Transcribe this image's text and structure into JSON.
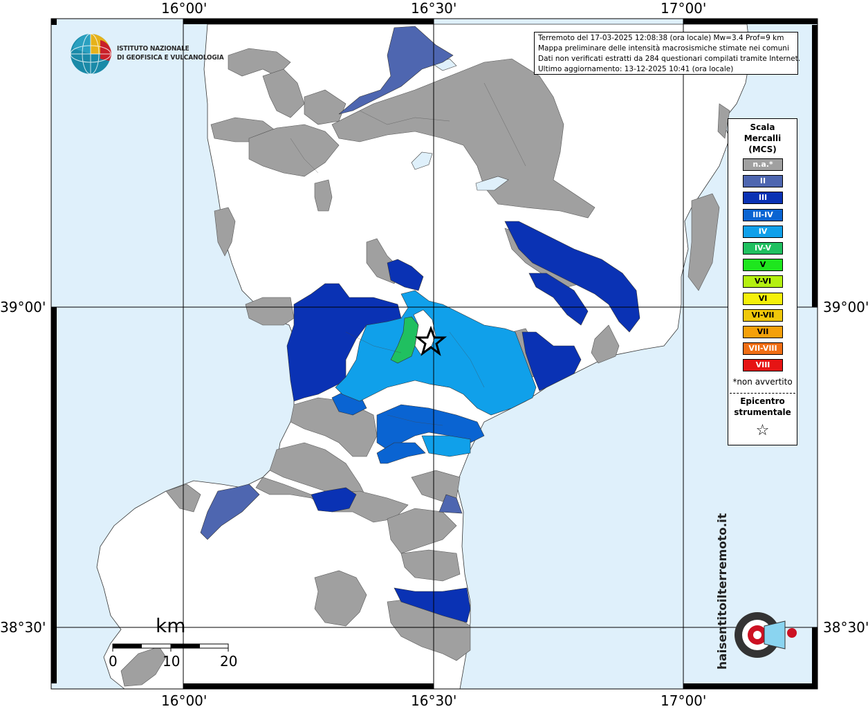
{
  "coordinates": {
    "top": [
      "16°00'",
      "16°30'",
      "17°00'"
    ],
    "bottom": [
      "16°00'",
      "16°30'",
      "17°00'"
    ],
    "left": [
      "39°00'",
      "38°30'"
    ],
    "right": [
      "39°00'",
      "38°30'"
    ]
  },
  "info": {
    "line1": "Terremoto del 17-03-2025 12:08:38 (ora locale) Mw=3.4 Prof=9 km",
    "line2": "Mappa preliminare delle intensità macrosismiche stimate nei comuni",
    "line3": "Dati non verificati estratti da 284 questionari compilati tramite Internet.",
    "line4": "Ultimo aggiornamento: 13-12-2025 10:41 (ora locale)"
  },
  "logo": {
    "line1": "ISTITUTO NAZIONALE",
    "line2": "DI GEOFISICA E VULCANOLOGIA"
  },
  "legend": {
    "title1": "Scala",
    "title2": "Mercalli",
    "title3": "(MCS)",
    "items": [
      {
        "label": "n.a.*",
        "color": "#a0a0a0"
      },
      {
        "label": "II",
        "color": "#4e66b0"
      },
      {
        "label": "III",
        "color": "#0a32b4"
      },
      {
        "label": "III-IV",
        "color": "#0a64d2"
      },
      {
        "label": "IV",
        "color": "#10a0ea"
      },
      {
        "label": "IV-V",
        "color": "#20c060"
      },
      {
        "label": "V",
        "color": "#1ee61e"
      },
      {
        "label": "V-VI",
        "color": "#b4f010"
      },
      {
        "label": "VI",
        "color": "#f5f00a"
      },
      {
        "label": "VI-VII",
        "color": "#f0c80a"
      },
      {
        "label": "VII",
        "color": "#f5a00a"
      },
      {
        "label": "VII-VIII",
        "color": "#f06e14"
      },
      {
        "label": "VIII",
        "color": "#e61414"
      }
    ],
    "note": "*non avvertito",
    "epicenter1": "Epicentro",
    "epicenter2": "strumentale"
  },
  "scale": {
    "unit": "km",
    "labels": [
      "0",
      "10",
      "20"
    ]
  },
  "colors": {
    "sea": "#dff0fb",
    "land": "#ffffff",
    "na": "#a0a0a0",
    "ii": "#4e66b0",
    "iii": "#0a32b4",
    "iii_iv": "#0a64d2",
    "iv": "#10a0ea",
    "iv_v": "#20c060"
  },
  "watermark": {
    "text": "haisentitoilterremoto.it",
    "url": "www."
  }
}
